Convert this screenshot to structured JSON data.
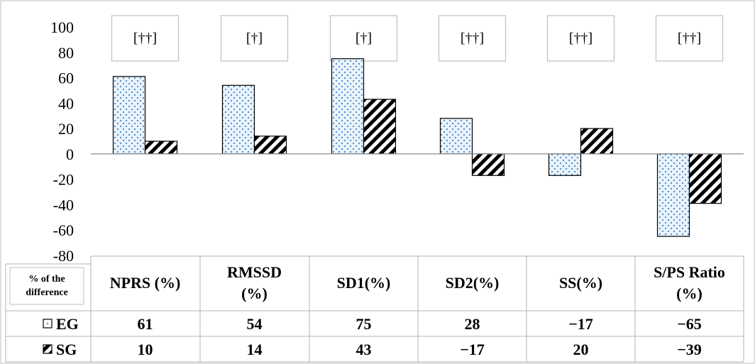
{
  "chart_data": {
    "type": "bar",
    "categories": [
      "NPRS (%)",
      "RMSSD (%)",
      "SD1(%)",
      "SD2(%)",
      "SS(%)",
      "S/PS Ratio (%)"
    ],
    "category_lines": [
      [
        "NPRS (%)"
      ],
      [
        "RMSSD",
        "(%)"
      ],
      [
        "SD1(%)"
      ],
      [
        "SD2(%)"
      ],
      [
        "SS(%)"
      ],
      [
        "S/PS Ratio",
        "(%)"
      ]
    ],
    "significance": [
      "[††]",
      "[†]",
      "[†]",
      "[††]",
      "[††]",
      "[††]"
    ],
    "series": [
      {
        "name": "EG",
        "values": [
          61,
          54,
          75,
          28,
          -17,
          -65
        ],
        "display": [
          "61",
          "54",
          "75",
          "28",
          "−17",
          "−65"
        ],
        "pattern": "dotted",
        "color": "#5b9bd5"
      },
      {
        "name": "SG",
        "values": [
          10,
          14,
          43,
          -17,
          20,
          -39
        ],
        "display": [
          "10",
          "14",
          "43",
          "−17",
          "20",
          "−39"
        ],
        "pattern": "hatched",
        "color": "#000000"
      }
    ],
    "table_header_label": [
      "% of the",
      "difference"
    ],
    "ylim": [
      -80,
      100
    ],
    "yticks": [
      100,
      80,
      60,
      40,
      20,
      0,
      -20,
      -40,
      -60,
      -80
    ],
    "grid": false,
    "legend": "table rows"
  }
}
